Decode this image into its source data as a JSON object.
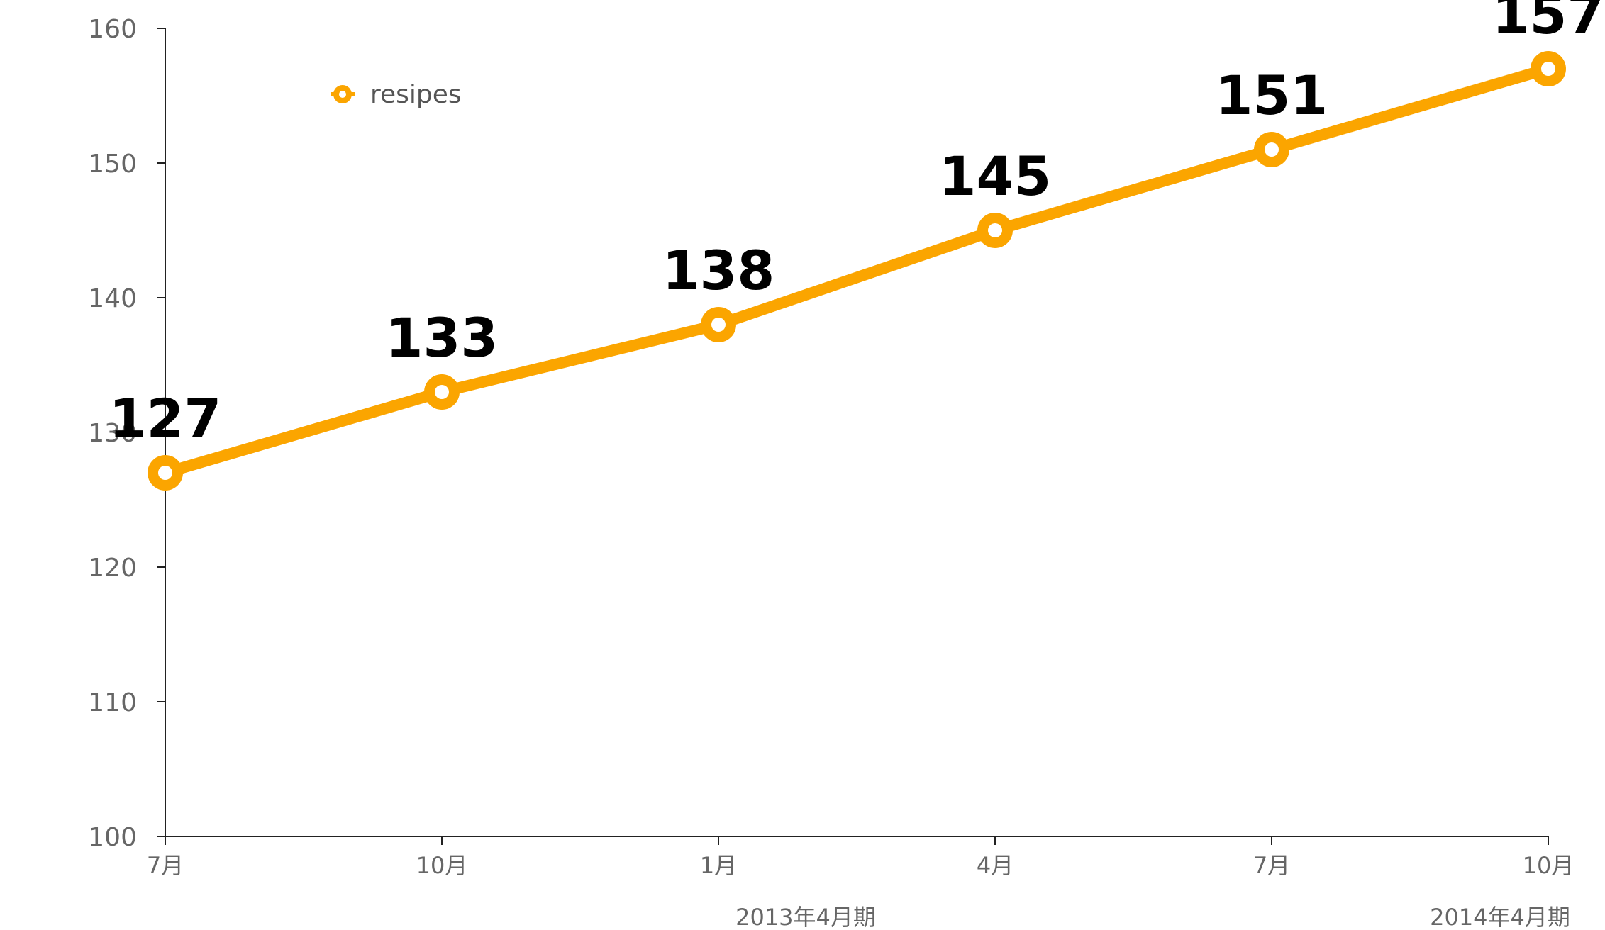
{
  "chart_data": {
    "type": "line",
    "categories": [
      "7月",
      "10月",
      "1月",
      "4月",
      "7月",
      "10月"
    ],
    "series": [
      {
        "name": "resipes",
        "values": [
          127,
          133,
          138,
          145,
          151,
          157
        ],
        "color": "#FBA500"
      }
    ],
    "ylim": [
      100,
      160
    ],
    "yticks": [
      100,
      110,
      120,
      130,
      140,
      150,
      160
    ],
    "group_labels": [
      "2013年4月期",
      "2014年4月期"
    ],
    "data_labels": true,
    "grid": false,
    "legend_position": "top-left"
  }
}
